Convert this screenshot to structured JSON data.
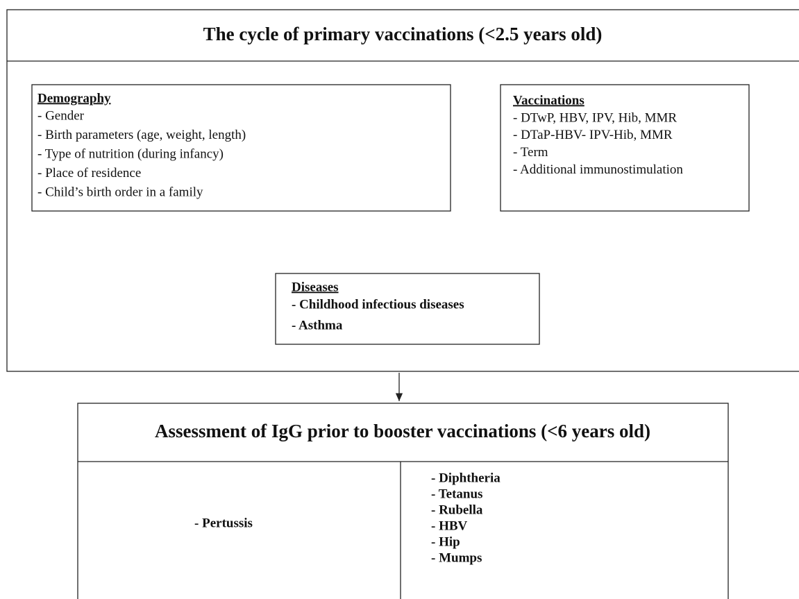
{
  "primary": {
    "title": "The cycle of primary vaccinations (<2.5 years old)",
    "demography": {
      "heading": "Demography",
      "items": [
        "- Gender",
        "- Birth parameters (age, weight, length)",
        "- Type of nutrition (during infancy)",
        "- Place of residence",
        "- Child’s birth order in a family"
      ]
    },
    "vaccinations": {
      "heading": "Vaccinations",
      "items": [
        "- DTwP, HBV, IPV, Hib, MMR",
        "- DTaP-HBV- IPV-Hib,  MMR",
        "- Term",
        "- Additional immunostimulation"
      ]
    },
    "diseases": {
      "heading": "Diseases",
      "items": [
        "- Childhood infectious diseases",
        "- Asthma"
      ]
    }
  },
  "assessment": {
    "title": "Assessment of IgG prior to booster vaccinations (<6 years old)",
    "left_items": [
      "- Pertussis"
    ],
    "right_items": [
      "- Diphtheria",
      "- Tetanus",
      "- Rubella",
      "- HBV",
      "- Hip",
      "- Mumps"
    ]
  }
}
